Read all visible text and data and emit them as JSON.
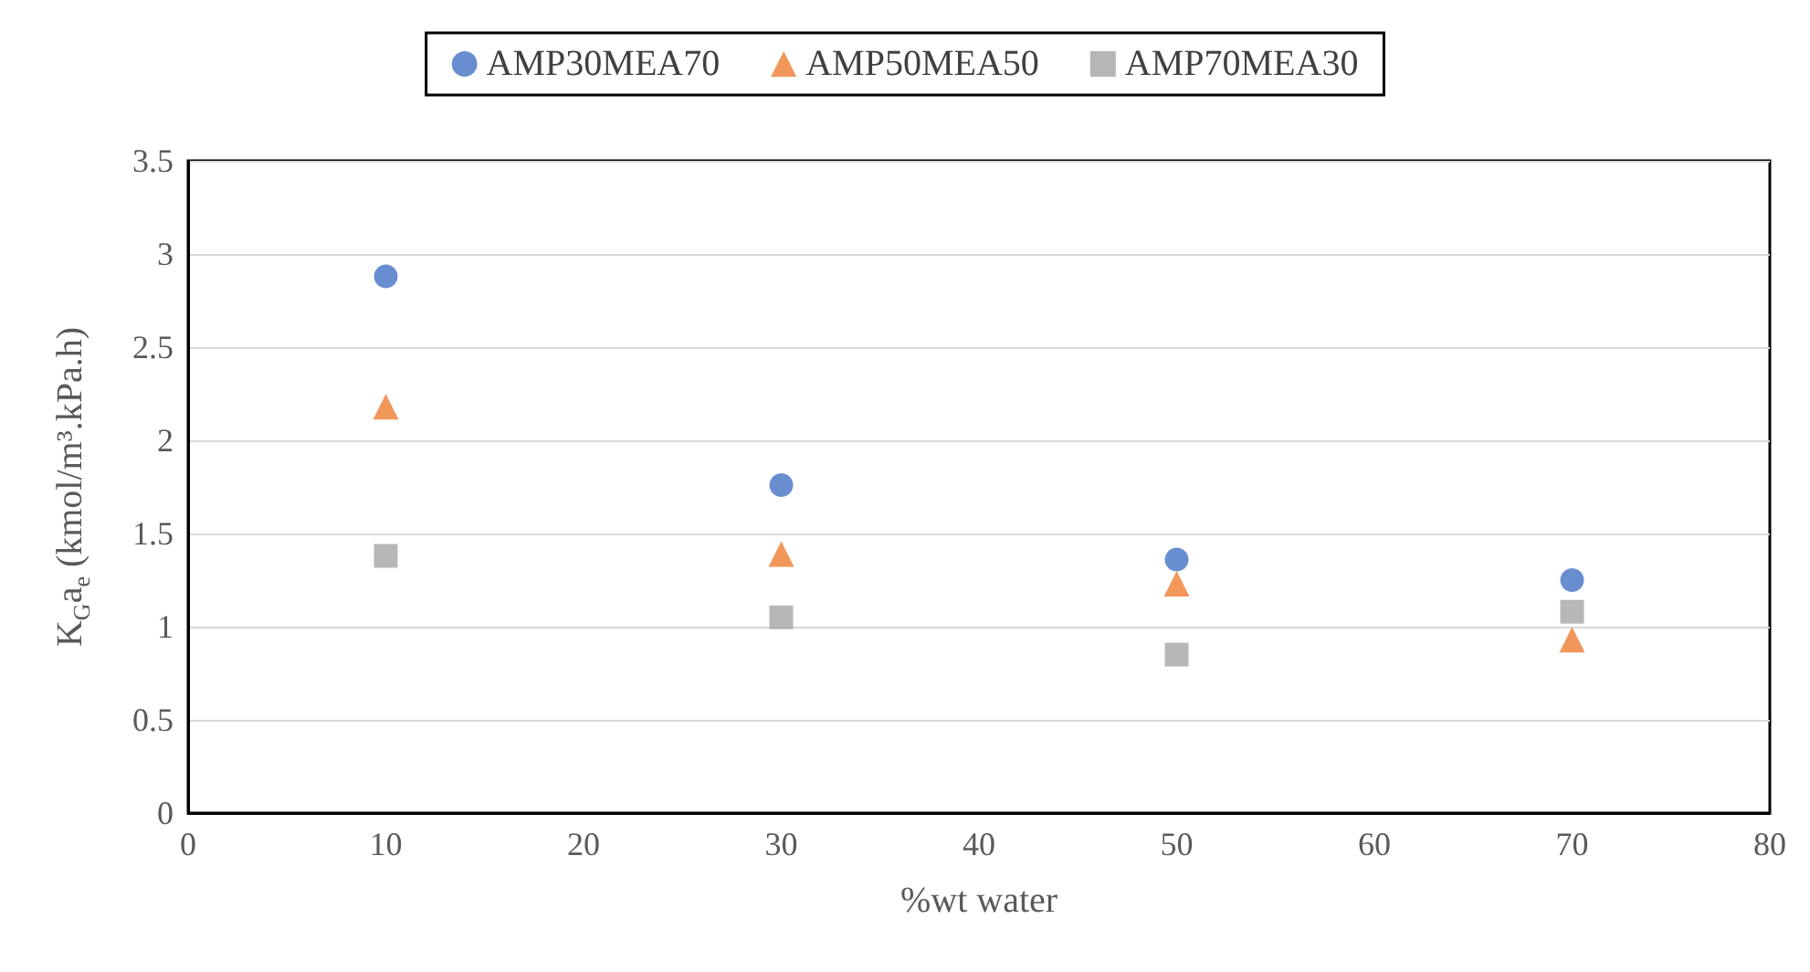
{
  "chart_data": {
    "type": "scatter",
    "xlabel": "%wt water",
    "ylabel": "K$_{G}$a$_{e}$ (kmol/m³.kPa.h)",
    "x": [
      10,
      30,
      50,
      70
    ],
    "series": [
      {
        "name": "AMP30MEA70",
        "color": "#4472c4",
        "marker": "circle",
        "values": [
          2.88,
          1.76,
          1.36,
          1.25
        ]
      },
      {
        "name": "AMP50MEA50",
        "color": "#ed7d31",
        "marker": "triangle",
        "values": [
          2.18,
          1.39,
          1.23,
          0.93
        ]
      },
      {
        "name": "AMP70MEA30",
        "color": "#a5a5a5",
        "marker": "square",
        "values": [
          1.38,
          1.05,
          0.85,
          1.08
        ]
      }
    ],
    "xlim": [
      0,
      80
    ],
    "xticks": [
      0,
      10,
      20,
      30,
      40,
      50,
      60,
      70,
      80
    ],
    "ylim": [
      0,
      3.5
    ],
    "yticks": [
      0,
      0.5,
      1,
      1.5,
      2,
      2.5,
      3,
      3.5
    ],
    "grid": "y",
    "legend": "top"
  }
}
